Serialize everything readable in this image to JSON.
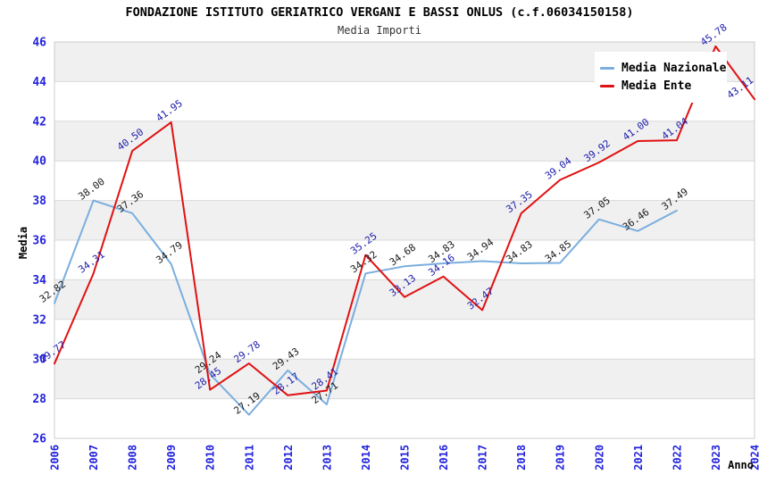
{
  "header": {
    "title": "FONDAZIONE ISTITUTO GERIATRICO VERGANI E BASSI ONLUS (c.f.06034150158)",
    "subtitle": "Media Importi"
  },
  "legend": {
    "items": [
      {
        "label": "Media Nazionale",
        "color": "#7aaede"
      },
      {
        "label": "Media Ente",
        "color": "#e01112"
      }
    ]
  },
  "chart_data": {
    "type": "line",
    "x": [
      2006,
      2007,
      2008,
      2009,
      2010,
      2011,
      2012,
      2013,
      2014,
      2015,
      2016,
      2017,
      2018,
      2019,
      2020,
      2021,
      2022,
      2023,
      2024
    ],
    "series": [
      {
        "name": "Media Nazionale",
        "color": "#7aaede",
        "label_color": "#1a1a1a",
        "values": [
          32.82,
          38.0,
          37.36,
          34.79,
          29.24,
          27.19,
          29.43,
          27.71,
          34.32,
          34.68,
          34.83,
          34.94,
          34.83,
          34.85,
          37.05,
          36.46,
          37.49
        ]
      },
      {
        "name": "Media Ente",
        "color": "#e01112",
        "label_color": "#1c1caa",
        "values": [
          29.77,
          34.31,
          40.5,
          41.95,
          28.45,
          29.78,
          28.17,
          28.41,
          35.25,
          33.13,
          34.16,
          32.47,
          37.35,
          39.04,
          39.92,
          41.0,
          41.04,
          45.78,
          43.11
        ]
      }
    ],
    "title": "FONDAZIONE ISTITUTO GERIATRICO VERGANI E BASSI ONLUS (c.f.06034150158)",
    "subtitle": "Media Importi",
    "xlabel": "Anno",
    "ylabel": "Media",
    "ylim": [
      26,
      46
    ],
    "ytick_step": 2,
    "yticks": [
      26,
      28,
      30,
      32,
      34,
      36,
      38,
      40,
      42,
      44,
      46
    ],
    "grid": true,
    "alternating_bands": true,
    "legend_position": "top-right"
  },
  "colors": {
    "tick_label": "#2222dd",
    "gridline": "#d9d9d9",
    "plot_border": "#cccccc",
    "band": "#f0f0f0",
    "background": "#ffffff"
  }
}
